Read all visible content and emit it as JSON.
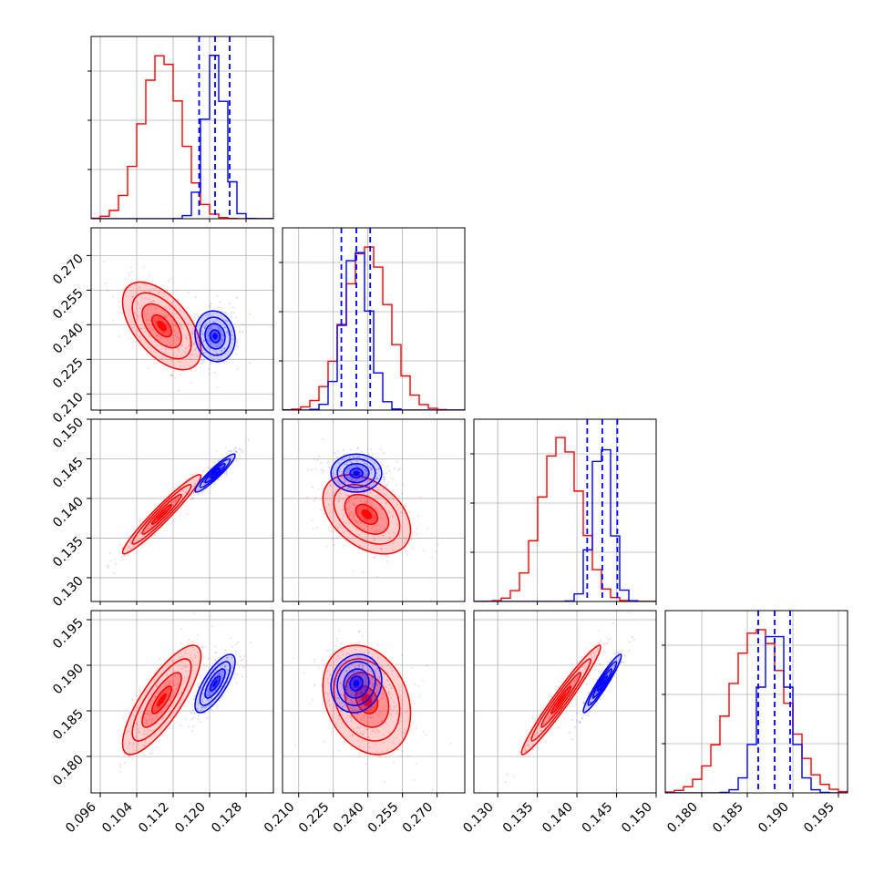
{
  "chart_data": {
    "type": "corner",
    "colors": {
      "series_a": "#ff0000",
      "series_b": "#0000ff"
    },
    "grid": true,
    "params": [
      {
        "index": 0,
        "range": [
          0.094,
          0.134
        ],
        "ticks": [
          "0.096",
          "0.104",
          "0.112",
          "0.120",
          "0.128"
        ]
      },
      {
        "index": 1,
        "range": [
          0.203,
          0.282
        ],
        "ticks": [
          "0.210",
          "0.225",
          "0.240",
          "0.255",
          "0.270"
        ]
      },
      {
        "index": 2,
        "range": [
          0.127,
          0.15
        ],
        "ticks": [
          "0.130",
          "0.135",
          "0.140",
          "0.145",
          "0.150"
        ]
      },
      {
        "index": 3,
        "range": [
          0.176,
          0.196
        ],
        "ticks": [
          "0.180",
          "0.185",
          "0.190",
          "0.195"
        ]
      }
    ],
    "series": [
      {
        "color": "#ff0000",
        "mean": [
          0.1095,
          0.2395,
          0.138,
          0.1862
        ],
        "sd": [
          0.0043,
          0.0095,
          0.0025,
          0.003
        ],
        "corr": [
          [
            0,
            1,
            -0.55
          ],
          [
            0,
            2,
            0.96
          ],
          [
            0,
            3,
            0.8
          ],
          [
            1,
            2,
            -0.4
          ],
          [
            1,
            3,
            -0.25
          ],
          [
            2,
            3,
            0.97
          ]
        ]
      },
      {
        "color": "#0000ff",
        "mean": [
          0.1212,
          0.235,
          0.1432,
          0.188
        ],
        "sd": [
          0.0022,
          0.0055,
          0.0012,
          0.0016
        ],
        "corr": [
          [
            0,
            1,
            -0.1
          ],
          [
            0,
            2,
            0.93
          ],
          [
            0,
            3,
            0.75
          ],
          [
            1,
            2,
            0.0
          ],
          [
            1,
            3,
            0.1
          ],
          [
            2,
            3,
            0.95
          ]
        ]
      }
    ],
    "quantile_lines": {
      "color": "#0000ff",
      "values": [
        [
          0.1177,
          0.1212,
          0.1244
        ],
        [
          0.2285,
          0.235,
          0.241
        ],
        [
          0.1413,
          0.1432,
          0.1451
        ],
        [
          0.1862,
          0.188,
          0.1897
        ]
      ]
    }
  }
}
